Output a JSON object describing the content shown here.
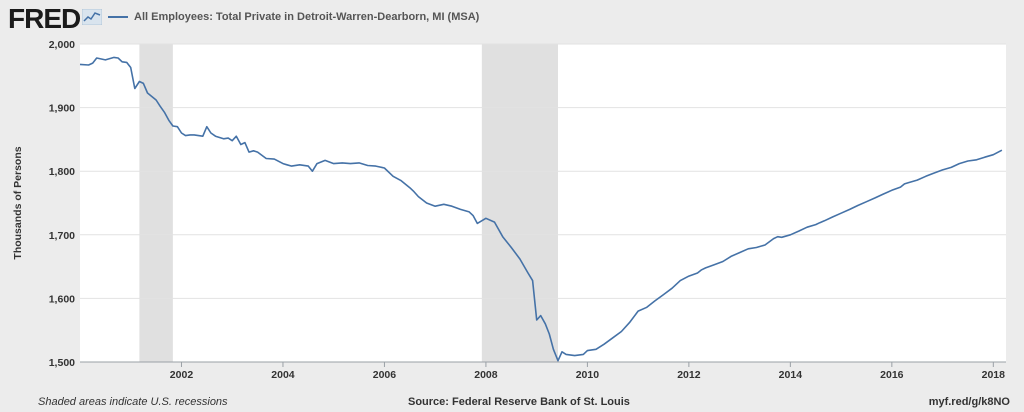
{
  "header": {
    "logo": "FRED",
    "legend_label": "All Employees: Total Private in Detroit-Warren-Dearborn, MI (MSA)"
  },
  "footer": {
    "note": "Shaded areas indicate U.S. recessions",
    "source": "Source: Federal Reserve Bank of St. Louis",
    "url": "myf.red/g/k8NO"
  },
  "colors": {
    "series": "#4572a7",
    "recession": "#e0e0e0",
    "background": "#ececec",
    "plot": "#ffffff"
  },
  "chart_data": {
    "type": "line",
    "title": "",
    "xlabel": "",
    "ylabel": "Thousands of Persons",
    "xlim": [
      2000.0,
      2018.25
    ],
    "ylim": [
      1500,
      2000
    ],
    "x_ticks": [
      "2002",
      "2004",
      "2006",
      "2008",
      "2010",
      "2012",
      "2014",
      "2016",
      "2018"
    ],
    "y_ticks": [
      "1,500",
      "1,600",
      "1,700",
      "1,800",
      "1,900",
      "2,000"
    ],
    "grid": "horizontal",
    "legend": "top-left",
    "recessions": [
      [
        2001.17,
        2001.83
      ],
      [
        2007.92,
        2009.42
      ]
    ],
    "series": [
      {
        "name": "All Employees: Total Private in Detroit-Warren-Dearborn, MI (MSA)",
        "x": [
          2000.0,
          2000.17,
          2000.25,
          2000.33,
          2000.5,
          2000.67,
          2000.75,
          2000.83,
          2000.92,
          2001.0,
          2001.08,
          2001.17,
          2001.25,
          2001.33,
          2001.5,
          2001.58,
          2001.67,
          2001.75,
          2001.83,
          2001.92,
          2002.0,
          2002.08,
          2002.17,
          2002.25,
          2002.42,
          2002.5,
          2002.58,
          2002.67,
          2002.83,
          2002.92,
          2003.0,
          2003.08,
          2003.17,
          2003.25,
          2003.33,
          2003.42,
          2003.5,
          2003.67,
          2003.83,
          2004.0,
          2004.08,
          2004.17,
          2004.33,
          2004.5,
          2004.58,
          2004.67,
          2004.83,
          2005.0,
          2005.17,
          2005.33,
          2005.5,
          2005.67,
          2005.83,
          2006.0,
          2006.17,
          2006.33,
          2006.5,
          2006.58,
          2006.67,
          2006.83,
          2007.0,
          2007.17,
          2007.33,
          2007.5,
          2007.67,
          2007.75,
          2007.83,
          2008.0,
          2008.17,
          2008.33,
          2008.5,
          2008.67,
          2008.83,
          2008.92,
          2009.0,
          2009.08,
          2009.17,
          2009.25,
          2009.33,
          2009.42,
          2009.5,
          2009.58,
          2009.75,
          2009.92,
          2010.0,
          2010.17,
          2010.33,
          2010.5,
          2010.67,
          2010.83,
          2011.0,
          2011.17,
          2011.33,
          2011.5,
          2011.67,
          2011.83,
          2012.0,
          2012.17,
          2012.25,
          2012.33,
          2012.5,
          2012.67,
          2012.83,
          2013.0,
          2013.17,
          2013.33,
          2013.5,
          2013.67,
          2013.75,
          2013.83,
          2014.0,
          2014.17,
          2014.33,
          2014.5,
          2014.58,
          2014.67,
          2014.83,
          2015.0,
          2015.17,
          2015.33,
          2015.5,
          2015.67,
          2015.83,
          2016.0,
          2016.17,
          2016.25,
          2016.33,
          2016.5,
          2016.67,
          2016.83,
          2017.0,
          2017.17,
          2017.33,
          2017.5,
          2017.67,
          2017.83,
          2018.0,
          2018.17
        ],
        "values": [
          1968,
          1967,
          1970,
          1978,
          1975,
          1979,
          1978,
          1972,
          1971,
          1963,
          1930,
          1941,
          1938,
          1923,
          1912,
          1902,
          1892,
          1880,
          1871,
          1870,
          1860,
          1856,
          1857,
          1857,
          1855,
          1870,
          1860,
          1855,
          1851,
          1852,
          1848,
          1855,
          1842,
          1845,
          1830,
          1832,
          1830,
          1820,
          1819,
          1812,
          1810,
          1808,
          1810,
          1808,
          1800,
          1812,
          1817,
          1812,
          1813,
          1812,
          1813,
          1809,
          1808,
          1805,
          1792,
          1785,
          1774,
          1768,
          1760,
          1750,
          1745,
          1748,
          1745,
          1740,
          1736,
          1730,
          1718,
          1726,
          1720,
          1697,
          1680,
          1662,
          1640,
          1628,
          1566,
          1573,
          1560,
          1544,
          1520,
          1502,
          1516,
          1512,
          1510,
          1512,
          1518,
          1520,
          1528,
          1538,
          1548,
          1562,
          1580,
          1586,
          1596,
          1606,
          1616,
          1628,
          1635,
          1640,
          1645,
          1648,
          1653,
          1658,
          1666,
          1672,
          1678,
          1680,
          1684,
          1694,
          1697,
          1696,
          1700,
          1706,
          1712,
          1716,
          1719,
          1722,
          1728,
          1734,
          1740,
          1746,
          1752,
          1758,
          1764,
          1770,
          1775,
          1780,
          1782,
          1786,
          1792,
          1797,
          1802,
          1806,
          1812,
          1816,
          1818,
          1822,
          1826,
          1833
        ]
      }
    ]
  }
}
